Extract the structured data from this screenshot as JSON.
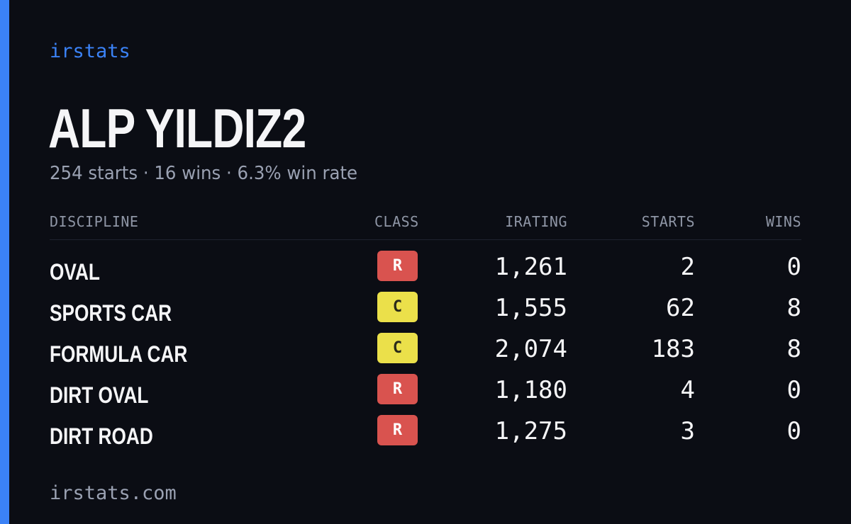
{
  "brand": "irstats",
  "driver": {
    "name": "ALP YILDIZ2",
    "summary": "254 starts · 16 wins · 6.3% win rate"
  },
  "table": {
    "headers": {
      "discipline": "DISCIPLINE",
      "class": "CLASS",
      "irating": "IRATING",
      "starts": "STARTS",
      "wins": "WINS"
    },
    "rows": [
      {
        "discipline": "OVAL",
        "class": "R",
        "irating": "1,261",
        "starts": "2",
        "wins": "0"
      },
      {
        "discipline": "SPORTS CAR",
        "class": "C",
        "irating": "1,555",
        "starts": "62",
        "wins": "8"
      },
      {
        "discipline": "FORMULA CAR",
        "class": "C",
        "irating": "2,074",
        "starts": "183",
        "wins": "8"
      },
      {
        "discipline": "DIRT OVAL",
        "class": "R",
        "irating": "1,180",
        "starts": "4",
        "wins": "0"
      },
      {
        "discipline": "DIRT ROAD",
        "class": "R",
        "irating": "1,275",
        "starts": "3",
        "wins": "0"
      }
    ]
  },
  "footer": "irstats.com",
  "colors": {
    "background": "#0b0d14",
    "accent": "#3b82f6",
    "class_r": "#d9534f",
    "class_c": "#ebe04a"
  }
}
